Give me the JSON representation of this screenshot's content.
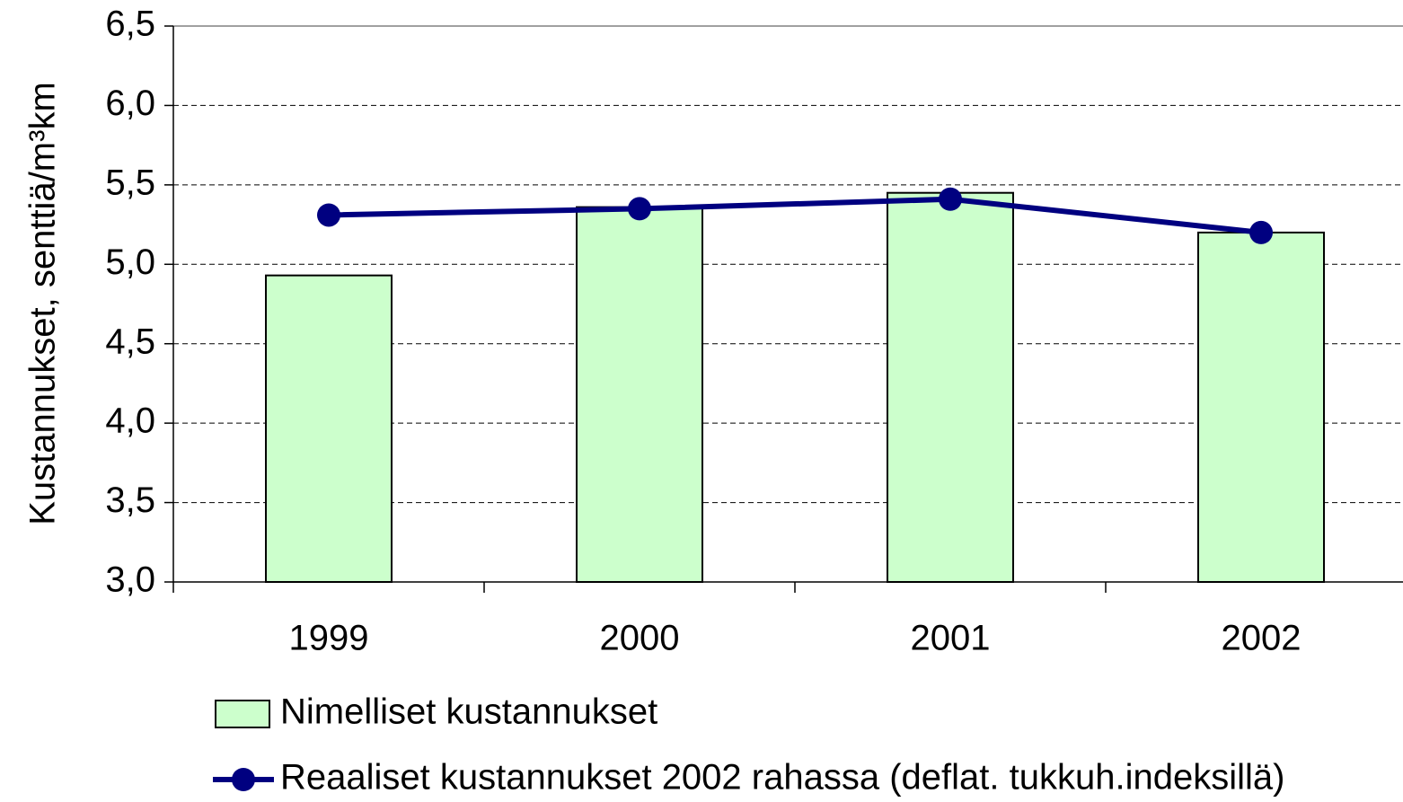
{
  "chart_data": {
    "type": "bar_line",
    "y_label": "Kustannukset, senttiä/m³km",
    "categories": [
      "1999",
      "2000",
      "2001",
      "2002"
    ],
    "series": [
      {
        "name": "Nimelliset kustannukset",
        "type": "bar",
        "color": "#ccffcc",
        "values": [
          4.93,
          5.36,
          5.45,
          5.2
        ]
      },
      {
        "name": "Reaaliset kustannukset 2002 rahassa (deflat. tukkuh.indeksillä)",
        "type": "line",
        "color": "#000080",
        "values": [
          5.31,
          5.35,
          5.41,
          5.2
        ]
      }
    ],
    "ylim": [
      3.0,
      6.5
    ],
    "yticks": [
      {
        "value": 3.0,
        "label": "3,0"
      },
      {
        "value": 3.5,
        "label": "3,5"
      },
      {
        "value": 4.0,
        "label": "4,0"
      },
      {
        "value": 4.5,
        "label": "4,5"
      },
      {
        "value": 5.0,
        "label": "5,0"
      },
      {
        "value": 5.5,
        "label": "5,5"
      },
      {
        "value": 6.0,
        "label": "6,0"
      },
      {
        "value": 6.5,
        "label": "6,5"
      }
    ],
    "grid": true
  }
}
